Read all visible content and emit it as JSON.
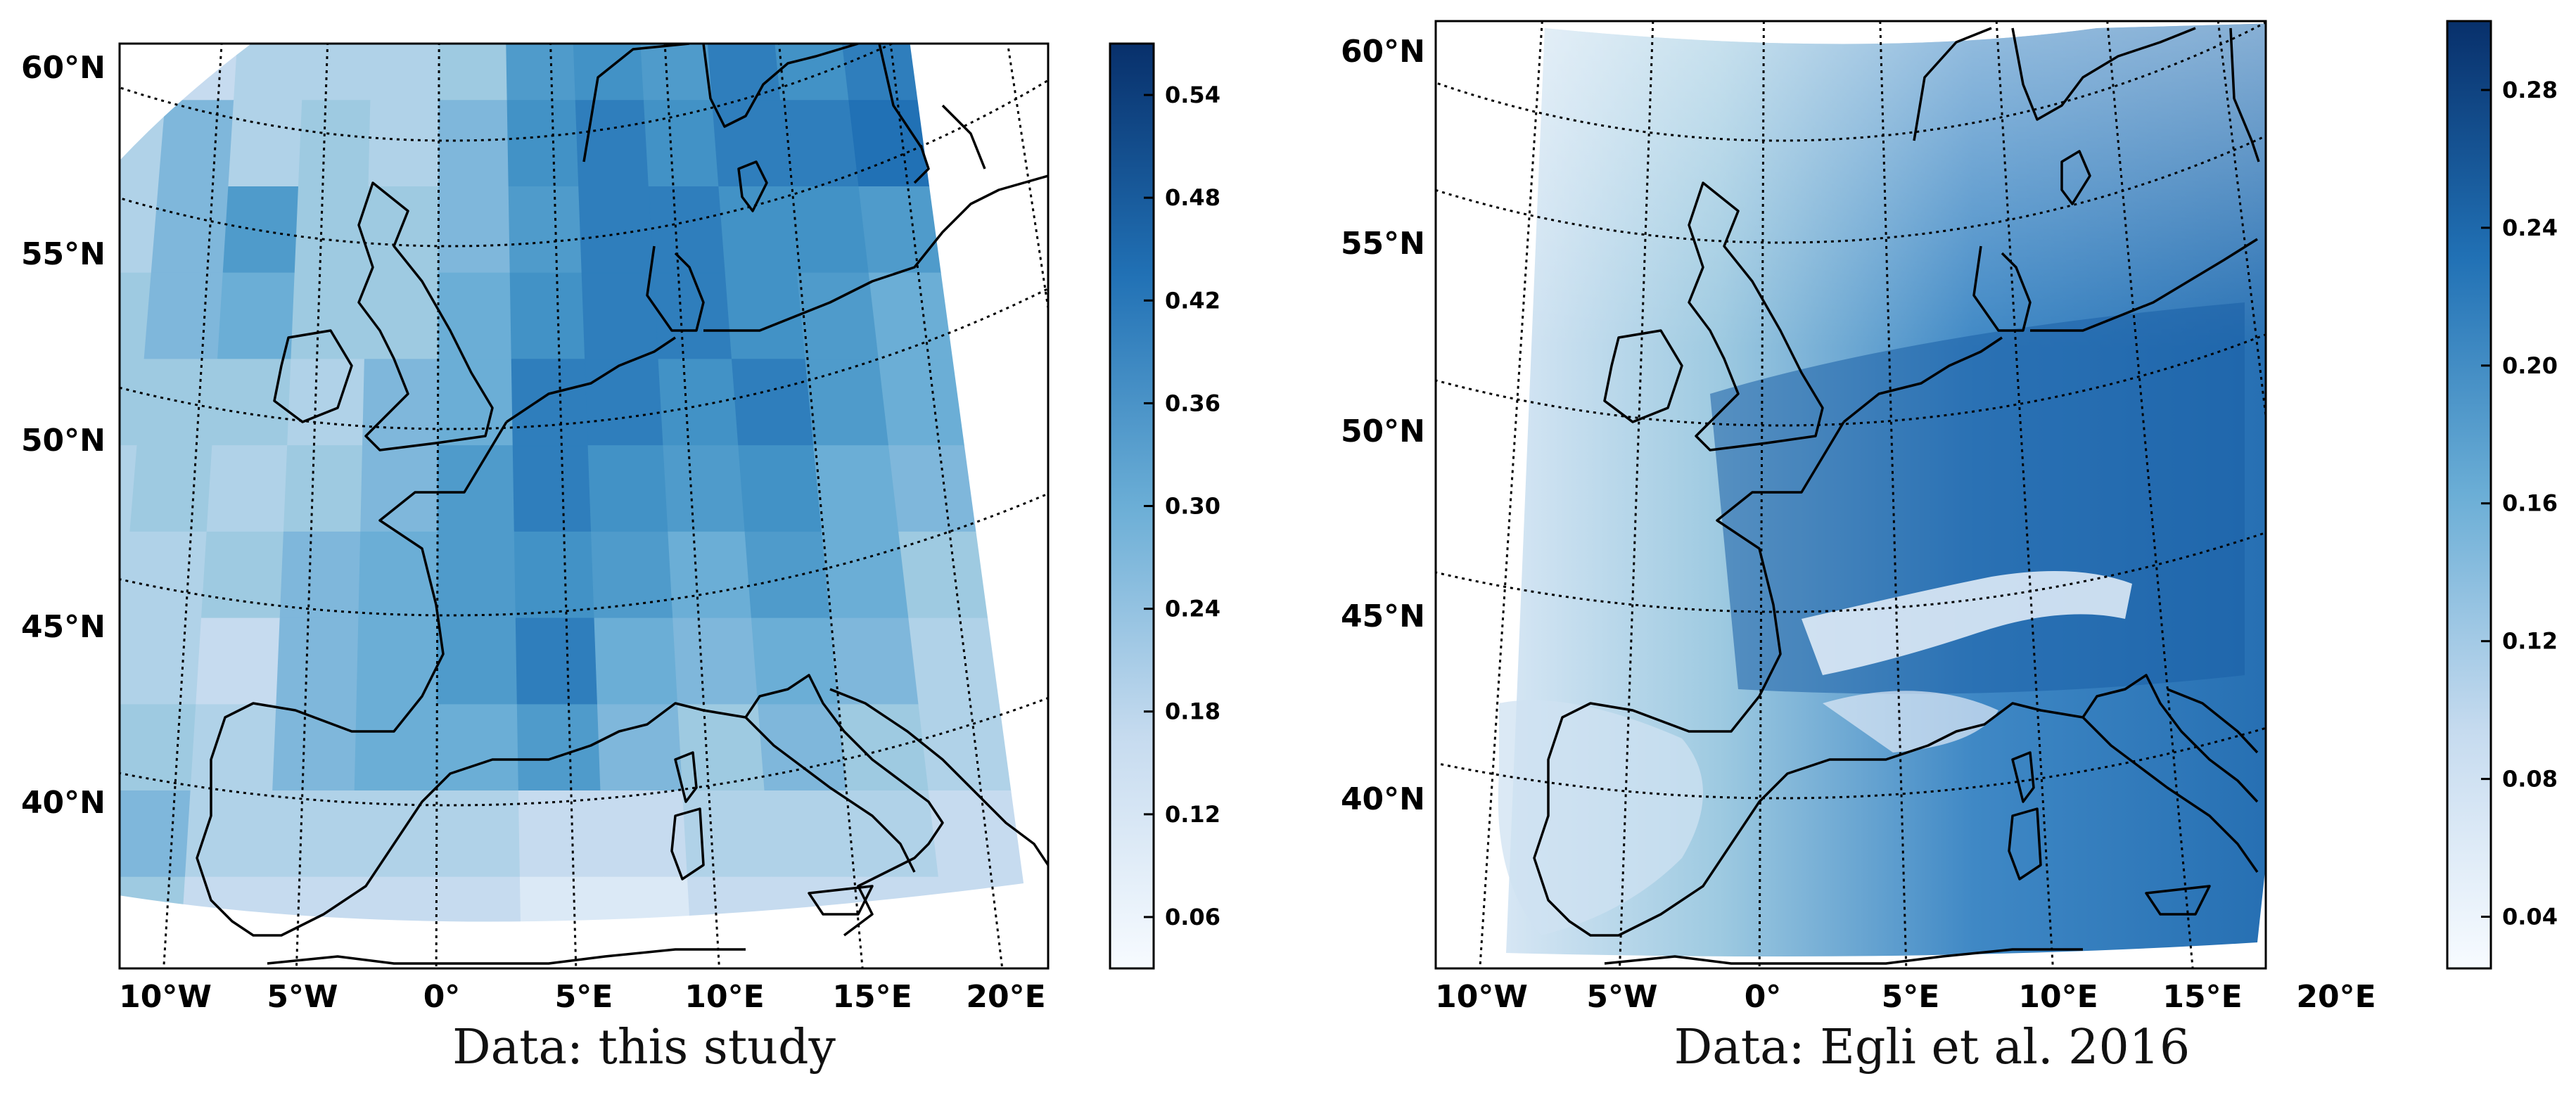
{
  "panels": [
    {
      "caption": "Data: this study",
      "lat_labels": [
        "60°N",
        "55°N",
        "50°N",
        "45°N",
        "40°N"
      ],
      "lon_labels": [
        "10°W",
        "5°W",
        "0°",
        "5°E",
        "10°E",
        "15°E",
        "20°E"
      ],
      "colorbar_ticks": [
        "0.54",
        "0.48",
        "0.42",
        "0.36",
        "0.30",
        "0.24",
        "0.18",
        "0.12",
        "0.06"
      ],
      "colorbar_range": [
        0.03,
        0.57
      ],
      "colormap": [
        "#f7fbff",
        "#08306b"
      ]
    },
    {
      "caption": "Data: Egli et al. 2016",
      "lat_labels": [
        "60°N",
        "55°N",
        "50°N",
        "45°N",
        "40°N"
      ],
      "lon_labels": [
        "10°W",
        "5°W",
        "0°",
        "5°E",
        "10°E",
        "15°E",
        "20°E"
      ],
      "colorbar_ticks": [
        "0.28",
        "0.24",
        "0.20",
        "0.16",
        "0.12",
        "0.08",
        "0.04"
      ],
      "colorbar_range": [
        0.025,
        0.3
      ],
      "colormap": [
        "#f7fbff",
        "#08306b"
      ]
    }
  ]
}
